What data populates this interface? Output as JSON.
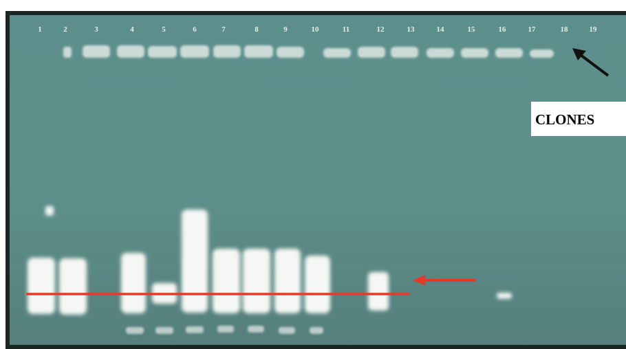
{
  "lanes": {
    "labels": [
      "1",
      "2",
      "3",
      "4",
      "5",
      "6",
      "7",
      "8",
      "9",
      "10",
      "11",
      "12",
      "13",
      "14",
      "15",
      "16",
      "17",
      "18",
      "19"
    ]
  },
  "annotation": {
    "label": "CLONES"
  }
}
